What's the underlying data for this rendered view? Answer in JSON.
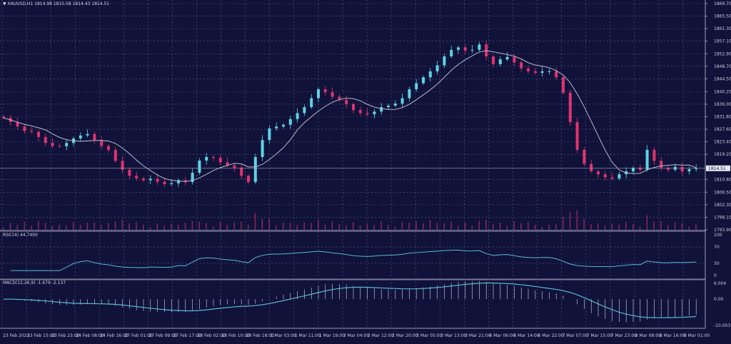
{
  "header": {
    "symbol": "XAUUSD,H1",
    "ohlc": "1814.98 1815.58 1814.43 1814.51"
  },
  "colors": {
    "background": "#10123a",
    "bull": "#5fd3e3",
    "bear": "#e0336e",
    "ma": "#b8b8c8",
    "rsi": "#5ab8d2",
    "macd_hist": "#d8dcec",
    "macd_signal": "#5ab8d2",
    "volume": "#c0306a",
    "grid": "#5a5f88"
  },
  "chart_data": [
    {
      "type": "candlestick",
      "title": "XAUUSD,H1",
      "price_ticks": [
        "1869.70",
        "1865.50",
        "1861.30",
        "1857.10",
        "1852.90",
        "1848.70",
        "1844.50",
        "1840.20",
        "1836.00",
        "1831.80",
        "1827.60",
        "1823.40",
        "1819.20",
        "1810.80",
        "1806.50",
        "1802.30",
        "1798.10",
        "1793.90"
      ],
      "ylim": [
        1793.9,
        1869.7
      ],
      "current_price": "1814.51",
      "x_ticks": [
        "23 Feb 2023",
        "23 Feb 15:00",
        "23 Feb 23:00",
        "24 Feb 08:00",
        "24 Feb 16:00",
        "27 Feb 01:00",
        "27 Feb 09:00",
        "27 Feb 17:00",
        "28 Feb 02:00",
        "28 Feb 10:00",
        "28 Feb 18:00",
        "1 Mar 03:00",
        "1 Mar 11:00",
        "1 Mar 19:00",
        "2 Mar 04:00",
        "2 Mar 12:00",
        "2 Mar 20:00",
        "3 Mar 05:00",
        "3 Mar 13:00",
        "3 Mar 21:00",
        "6 Mar 06:00",
        "6 Mar 14:00",
        "6 Mar 22:00",
        "7 Mar 07:00",
        "7 Mar 15:00",
        "7 Mar 23:00",
        "8 Mar 08:00",
        "8 Mar 16:00",
        "9 Mar 01:00"
      ],
      "closes": [
        1831.4,
        1830,
        1828.5,
        1827,
        1826.7,
        1825,
        1823,
        1822,
        1821.9,
        1823,
        1824.5,
        1825.5,
        1826,
        1824,
        1822,
        1820.7,
        1817,
        1814,
        1812,
        1811.1,
        1810.5,
        1811,
        1810,
        1809.2,
        1809.5,
        1810.5,
        1809.9,
        1813,
        1817.1,
        1818.3,
        1818,
        1816.5,
        1815.5,
        1814.7,
        1812,
        1809.9,
        1818.3,
        1824,
        1827.9,
        1828.5,
        1829.1,
        1831,
        1833,
        1835,
        1838,
        1841,
        1840,
        1838.5,
        1837.4,
        1836,
        1834,
        1833,
        1832.6,
        1833.5,
        1835,
        1835.5,
        1836.2,
        1838,
        1841,
        1843,
        1845,
        1847,
        1849,
        1852,
        1854.2,
        1855,
        1854,
        1854.2,
        1856,
        1852,
        1849.4,
        1851,
        1851.8,
        1850,
        1848,
        1847,
        1846.5,
        1847,
        1847,
        1845,
        1839.8,
        1830,
        1820.7,
        1816,
        1813.5,
        1812.5,
        1811.5,
        1811.1,
        1812.5,
        1813.5,
        1814.7,
        1814,
        1820.7,
        1817,
        1814.7,
        1814,
        1815,
        1813.5,
        1814.2,
        1814.51
      ],
      "grid": true
    },
    {
      "type": "line",
      "title": "RSI(14) 44.7400",
      "ticks": [
        "100",
        "70",
        "30",
        "0"
      ],
      "ylim": [
        0,
        100
      ]
    },
    {
      "type": "bar",
      "title": "MACD(12,26,9) -1.679 -2.137",
      "ticks": [
        "6.004",
        "0.00",
        "-10.003"
      ],
      "ylim": [
        -10.003,
        6.004
      ]
    }
  ]
}
